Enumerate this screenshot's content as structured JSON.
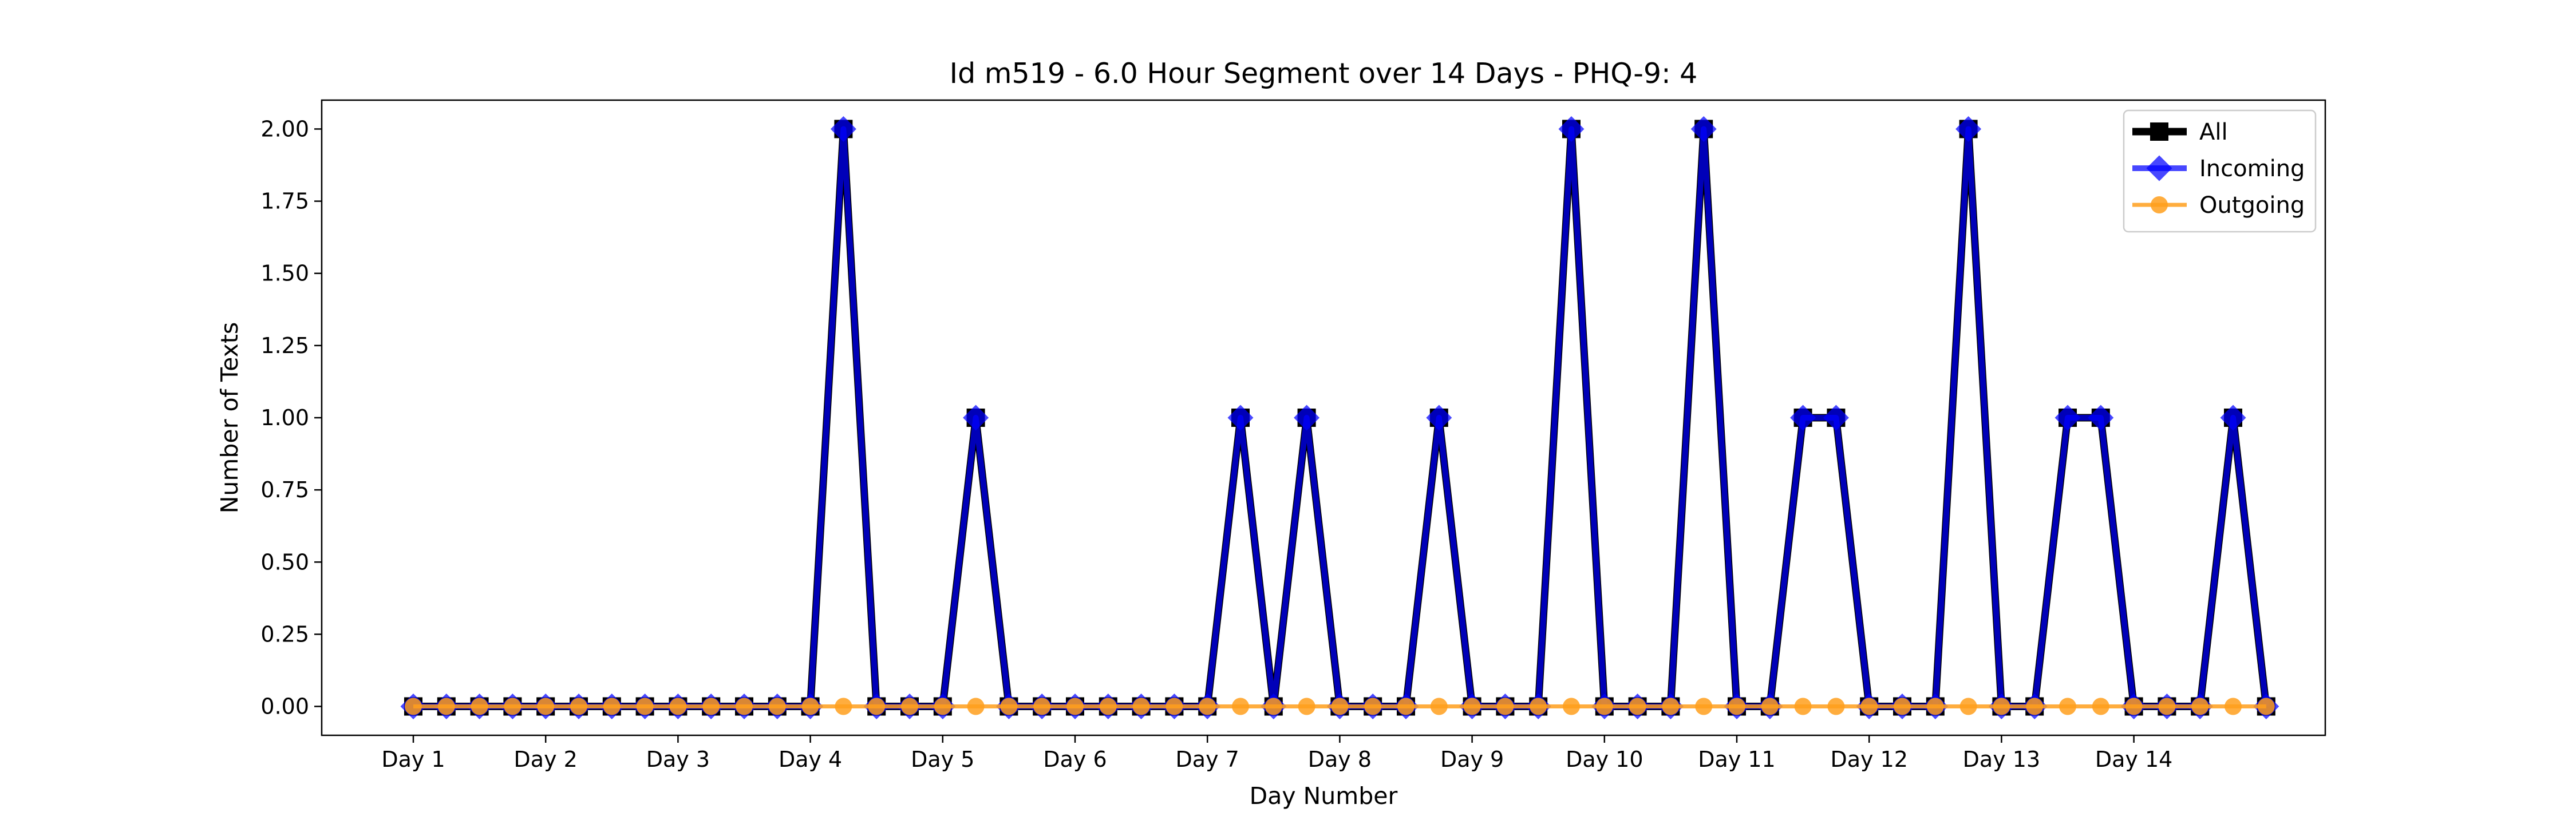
{
  "chart_data": {
    "type": "line",
    "title": "Id m519 - 6.0 Hour Segment over 14 Days - PHQ-9: 4",
    "xlabel": "Day Number",
    "ylabel": "Number of Texts",
    "ylim": [
      -0.1,
      2.1
    ],
    "yticks": [
      "0.00",
      "0.25",
      "0.50",
      "0.75",
      "1.00",
      "1.25",
      "1.50",
      "1.75",
      "2.00"
    ],
    "xticks": [
      "Day 1",
      "Day 2",
      "Day 3",
      "Day 4",
      "Day 5",
      "Day 6",
      "Day 7",
      "Day 8",
      "Day 9",
      "Day 10",
      "Day 11",
      "Day 12",
      "Day 13",
      "Day 14"
    ],
    "segments_per_day": 4,
    "grid": false,
    "legend_position": "top-right",
    "series": [
      {
        "name": "All",
        "color": "#000000",
        "marker": "square",
        "values": [
          0,
          0,
          0,
          0,
          0,
          0,
          0,
          0,
          0,
          0,
          0,
          0,
          0,
          2,
          0,
          0,
          0,
          1,
          0,
          0,
          0,
          0,
          0,
          0,
          0,
          1,
          0,
          1,
          0,
          0,
          0,
          1,
          0,
          0,
          0,
          2,
          0,
          0,
          0,
          2,
          0,
          0,
          1,
          1,
          0,
          0,
          0,
          2,
          0,
          0,
          1,
          1,
          0,
          0,
          0,
          1,
          0
        ]
      },
      {
        "name": "Incoming",
        "color": "#0000ff",
        "marker": "diamond",
        "values": [
          0,
          0,
          0,
          0,
          0,
          0,
          0,
          0,
          0,
          0,
          0,
          0,
          0,
          2,
          0,
          0,
          0,
          1,
          0,
          0,
          0,
          0,
          0,
          0,
          0,
          1,
          0,
          1,
          0,
          0,
          0,
          1,
          0,
          0,
          0,
          2,
          0,
          0,
          0,
          2,
          0,
          0,
          1,
          1,
          0,
          0,
          0,
          2,
          0,
          0,
          1,
          1,
          0,
          0,
          0,
          1,
          0
        ]
      },
      {
        "name": "Outgoing",
        "color": "#ff9f1c",
        "marker": "circle",
        "values": [
          0,
          0,
          0,
          0,
          0,
          0,
          0,
          0,
          0,
          0,
          0,
          0,
          0,
          0,
          0,
          0,
          0,
          0,
          0,
          0,
          0,
          0,
          0,
          0,
          0,
          0,
          0,
          0,
          0,
          0,
          0,
          0,
          0,
          0,
          0,
          0,
          0,
          0,
          0,
          0,
          0,
          0,
          0,
          0,
          0,
          0,
          0,
          0,
          0,
          0,
          0,
          0,
          0,
          0,
          0,
          0,
          0
        ]
      }
    ]
  }
}
